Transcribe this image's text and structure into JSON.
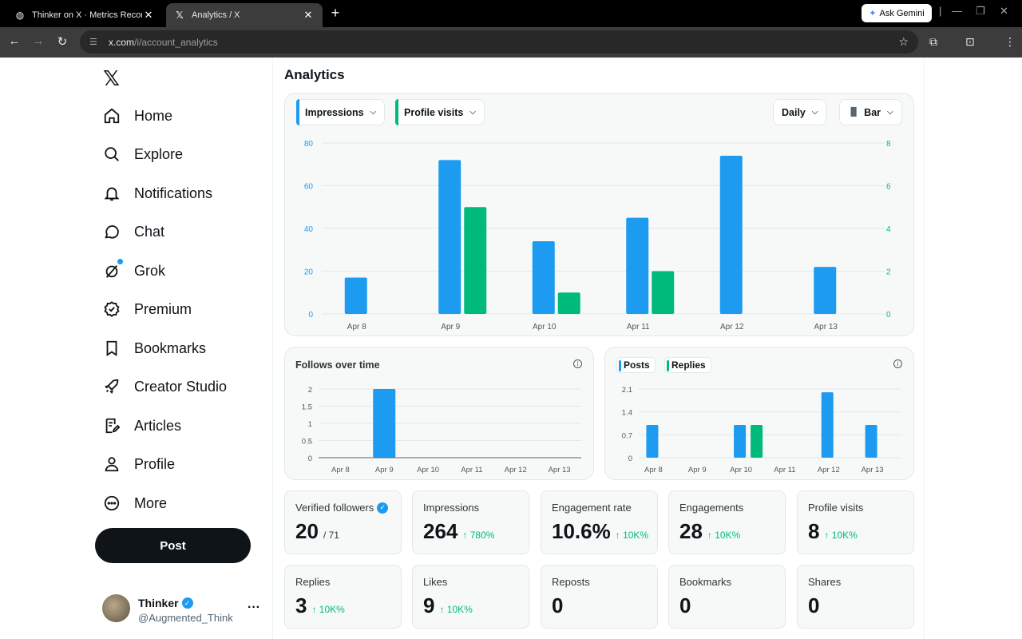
{
  "browser": {
    "tabs": [
      {
        "title": "Thinker on X · Metrics Record ·",
        "active": false
      },
      {
        "title": "Analytics / X",
        "active": true
      }
    ],
    "gemini_label": "Ask Gemini",
    "url_host": "x.com",
    "url_path": "/i/account_analytics"
  },
  "sidebar": {
    "items": [
      {
        "label": "Home",
        "icon": "home-icon"
      },
      {
        "label": "Explore",
        "icon": "search-icon"
      },
      {
        "label": "Notifications",
        "icon": "bell-icon"
      },
      {
        "label": "Chat",
        "icon": "chat-icon"
      },
      {
        "label": "Grok",
        "icon": "grok-icon"
      },
      {
        "label": "Premium",
        "icon": "verified-icon"
      },
      {
        "label": "Bookmarks",
        "icon": "bookmark-icon"
      },
      {
        "label": "Creator Studio",
        "icon": "rocket-icon"
      },
      {
        "label": "Articles",
        "icon": "article-icon"
      },
      {
        "label": "Profile",
        "icon": "person-icon"
      },
      {
        "label": "More",
        "icon": "more-icon"
      }
    ],
    "post_label": "Post",
    "account": {
      "name": "Thinker",
      "handle": "@Augmented_Think"
    }
  },
  "main": {
    "title": "Analytics",
    "controls": {
      "metric1": "Impressions",
      "metric2": "Profile visits",
      "period": "Daily",
      "chart_type": "Bar"
    },
    "follows_title": "Follows over time",
    "posts_legend": [
      "Posts",
      "Replies"
    ],
    "stats": [
      {
        "label": "Verified followers",
        "value": "20",
        "sub": "/ 71",
        "change": "",
        "verified": true
      },
      {
        "label": "Impressions",
        "value": "264",
        "sub": "",
        "change": "↑ 780%"
      },
      {
        "label": "Engagement rate",
        "value": "10.6%",
        "sub": "",
        "change": "↑ 10K%"
      },
      {
        "label": "Engagements",
        "value": "28",
        "sub": "",
        "change": "↑ 10K%"
      },
      {
        "label": "Profile visits",
        "value": "8",
        "sub": "",
        "change": "↑ 10K%"
      },
      {
        "label": "Replies",
        "value": "3",
        "sub": "",
        "change": "↑ 10K%"
      },
      {
        "label": "Likes",
        "value": "9",
        "sub": "",
        "change": "↑ 10K%"
      },
      {
        "label": "Reposts",
        "value": "0",
        "sub": "",
        "change": ""
      },
      {
        "label": "Bookmarks",
        "value": "0",
        "sub": "",
        "change": ""
      },
      {
        "label": "Shares",
        "value": "0",
        "sub": "",
        "change": ""
      }
    ]
  },
  "colors": {
    "blue": "#1d9bf0",
    "green": "#00ba7c"
  },
  "chart_data": [
    {
      "type": "bar",
      "categories": [
        "Apr 8",
        "Apr 9",
        "Apr 10",
        "Apr 11",
        "Apr 12",
        "Apr 13"
      ],
      "series": [
        {
          "name": "Impressions",
          "values": [
            17,
            72,
            34,
            45,
            74,
            22
          ],
          "axis": "left"
        },
        {
          "name": "Profile visits",
          "values": [
            0,
            5,
            1,
            2,
            0,
            0
          ],
          "axis": "right"
        }
      ],
      "yticks_left": [
        0,
        20,
        40,
        60,
        80
      ],
      "yticks_right": [
        0,
        2,
        4,
        6,
        8
      ],
      "ylim": [
        0,
        80
      ],
      "ylim_right": [
        0,
        8
      ]
    },
    {
      "type": "bar",
      "title": "Follows over time",
      "categories": [
        "Apr 8",
        "Apr 9",
        "Apr 10",
        "Apr 11",
        "Apr 12",
        "Apr 13"
      ],
      "series": [
        {
          "values": [
            0,
            2,
            0,
            0,
            0,
            0
          ]
        }
      ],
      "yticks": [
        "0",
        "0.5",
        "1",
        "1.5",
        "2"
      ],
      "ylim": [
        0,
        2
      ]
    },
    {
      "type": "bar",
      "categories": [
        "Apr 8",
        "Apr 9",
        "Apr 10",
        "Apr 11",
        "Apr 12",
        "Apr 13"
      ],
      "series": [
        {
          "name": "Posts",
          "values": [
            1,
            0,
            1,
            0,
            2,
            1
          ]
        },
        {
          "name": "Replies",
          "values": [
            0,
            0,
            1,
            0,
            0,
            0
          ]
        }
      ],
      "yticks": [
        "0",
        "0.7",
        "1.4",
        "2.1"
      ],
      "ylim": [
        0,
        2.1
      ]
    }
  ]
}
